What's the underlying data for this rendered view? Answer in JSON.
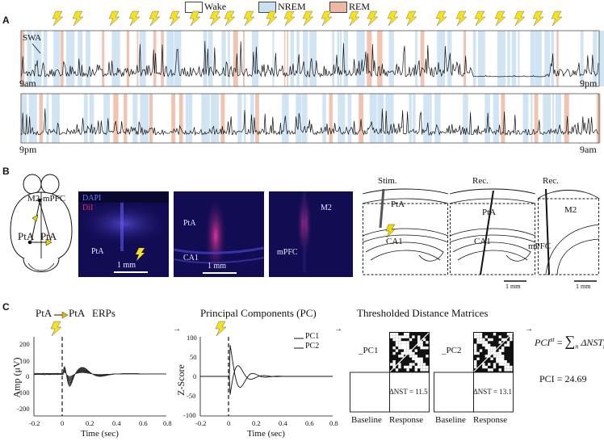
{
  "panels": {
    "a": "A",
    "b": "B",
    "c": "C"
  },
  "legend": [
    {
      "label": "Wake",
      "color": "#ffffff"
    },
    {
      "label": "NREM",
      "color": "#c9dff2"
    },
    {
      "label": "REM",
      "color": "#eeb8a3"
    }
  ],
  "panel_a": {
    "swa_label": "SWA",
    "row1": {
      "start": "9am",
      "end": "9pm"
    },
    "row2": {
      "start": "9pm",
      "end": "9am"
    }
  },
  "panel_b": {
    "brain": {
      "top_label": "M2-mPFC",
      "left_label": "PtA",
      "right_label": "PtA"
    },
    "micro1": {
      "dapi": "DAPI",
      "dil": "DiI",
      "region": "PtA",
      "scale": "1 mm"
    },
    "micro2": {
      "region1": "PtA",
      "region2": "CA1",
      "scale": "1 mm"
    },
    "micro3": {
      "region1": "M2",
      "region2": "mPFC"
    },
    "schem1": {
      "title": "Stim.",
      "region1": "PtA",
      "region2": "CA1"
    },
    "schem2": {
      "title": "Rec.",
      "region1": "PtA",
      "region2": "CA1",
      "scale": "1 mm"
    },
    "schem3": {
      "title": "Rec.",
      "region1": "M2",
      "region2": "mPFC",
      "scale": "1 mm"
    }
  },
  "panel_c": {
    "erp_title_left": "PtA",
    "erp_title_right": "PtA",
    "erp_title_suffix": "ERPs",
    "pc_title": "Principal Components (PC)",
    "tdm_title": "Thresholded Distance Matrices",
    "erp_ylabel": "Amp (μV)",
    "pc_ylabel": "Z-Score",
    "xlabel": "Time (sec)",
    "erp_yticks": [
      "200",
      "100",
      "0",
      "-100",
      "-200"
    ],
    "pc_yticks": [
      "100",
      "50",
      "0",
      "-50",
      "-100"
    ],
    "xticks": [
      "-0.2",
      "0",
      "0.2",
      "0.4",
      "0.6",
      "0.8"
    ],
    "pc_legend": [
      "PC1",
      "PC2"
    ],
    "matrix1": {
      "label": "_PC1",
      "nst": "ΔNST = 11.5",
      "baseline": "Baseline",
      "response": "Response"
    },
    "matrix2": {
      "label": "_PC2",
      "nst": "ΔNST = 13.1",
      "baseline": "Baseline",
      "response": "Response"
    },
    "formula": {
      "lhs": "PCI",
      "sup": "st",
      "sum": "∑",
      "sub": "n",
      "term": "ΔNST",
      "term_sub": "n"
    },
    "pci_value": "PCI = 24.69"
  }
}
